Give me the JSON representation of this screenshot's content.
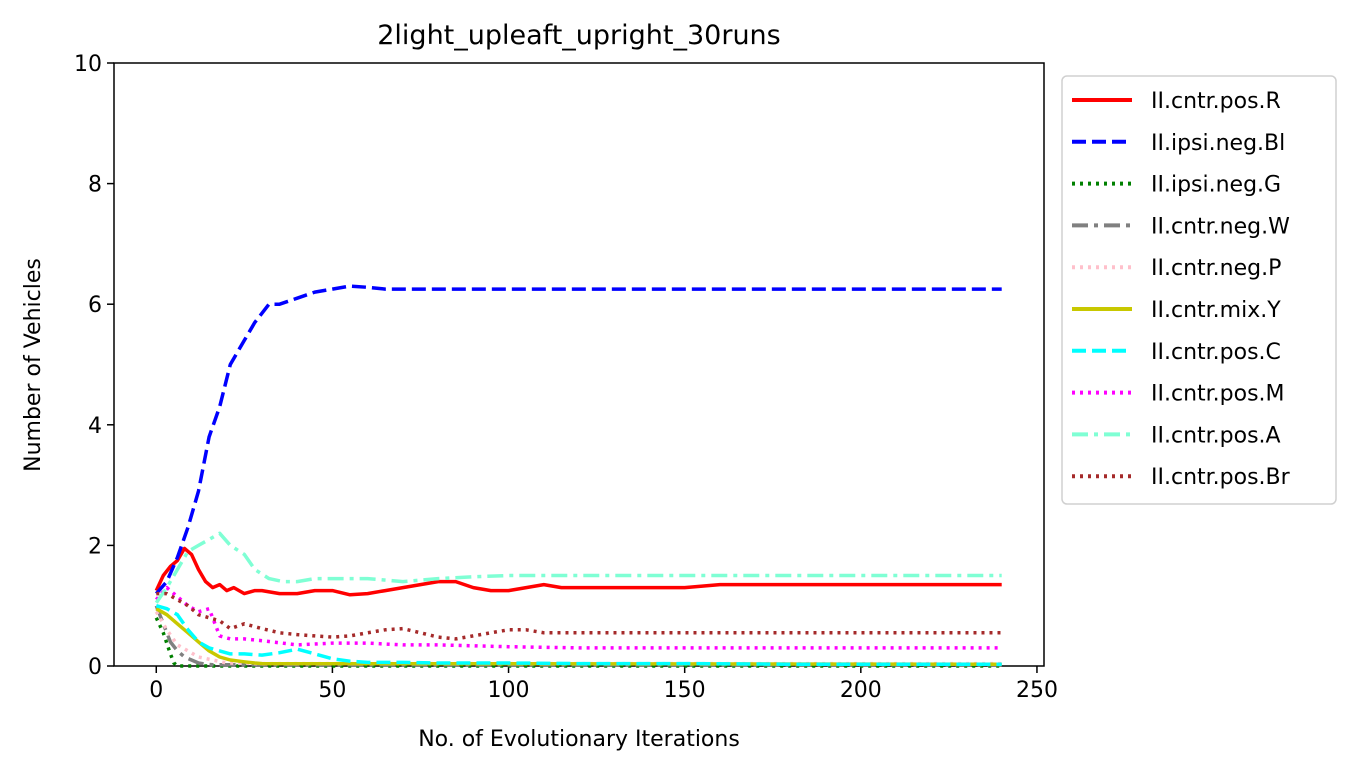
{
  "chart_data": {
    "type": "line",
    "title": "2light_upleaft_upright_30runs",
    "xlabel": "No. of Evolutionary Iterations",
    "ylabel": "Number of Vehicles",
    "xlim": [
      -12,
      252
    ],
    "ylim": [
      0,
      10
    ],
    "xticks": [
      0,
      50,
      100,
      150,
      200,
      250
    ],
    "yticks": [
      0,
      2,
      4,
      6,
      8,
      10
    ],
    "legend_position": "outside-right-top",
    "grid": false,
    "series": [
      {
        "name": "II.cntr.pos.R",
        "color": "#ff0000",
        "style": "solid",
        "x": [
          0,
          2,
          4,
          6,
          8,
          10,
          12,
          14,
          16,
          18,
          20,
          22,
          25,
          28,
          30,
          35,
          40,
          45,
          50,
          55,
          60,
          65,
          70,
          75,
          80,
          85,
          90,
          95,
          100,
          105,
          110,
          115,
          120,
          130,
          140,
          150,
          160,
          170,
          180,
          200,
          220,
          240
        ],
        "y": [
          1.25,
          1.5,
          1.65,
          1.75,
          1.95,
          1.85,
          1.6,
          1.4,
          1.3,
          1.35,
          1.25,
          1.3,
          1.2,
          1.25,
          1.25,
          1.2,
          1.2,
          1.25,
          1.25,
          1.18,
          1.2,
          1.25,
          1.3,
          1.35,
          1.4,
          1.4,
          1.3,
          1.25,
          1.25,
          1.3,
          1.35,
          1.3,
          1.3,
          1.3,
          1.3,
          1.3,
          1.35,
          1.35,
          1.35,
          1.35,
          1.35,
          1.35
        ]
      },
      {
        "name": "II.ipsi.neg.Bl",
        "color": "#0000ff",
        "style": "dashed",
        "x": [
          0,
          3,
          6,
          9,
          12,
          15,
          18,
          21,
          25,
          28,
          32,
          35,
          40,
          45,
          50,
          55,
          60,
          65,
          70,
          75,
          80,
          90,
          100,
          120,
          140,
          160,
          180,
          200,
          220,
          240
        ],
        "y": [
          1.2,
          1.4,
          1.8,
          2.3,
          2.9,
          3.8,
          4.3,
          5.0,
          5.4,
          5.7,
          6.0,
          6.0,
          6.1,
          6.2,
          6.25,
          6.3,
          6.28,
          6.25,
          6.25,
          6.25,
          6.25,
          6.25,
          6.25,
          6.25,
          6.25,
          6.25,
          6.25,
          6.25,
          6.25,
          6.25
        ]
      },
      {
        "name": "II.ipsi.neg.G",
        "color": "#008000",
        "style": "dotted",
        "x": [
          0,
          2,
          4,
          5,
          6,
          8,
          240
        ],
        "y": [
          0.8,
          0.55,
          0.2,
          0.05,
          0.0,
          0.0,
          0.0
        ]
      },
      {
        "name": "II.cntr.neg.W",
        "color": "#808080",
        "style": "dashdot",
        "x": [
          0,
          2,
          4,
          6,
          8,
          10,
          12,
          14,
          16,
          20,
          240
        ],
        "y": [
          1.0,
          0.7,
          0.4,
          0.25,
          0.15,
          0.1,
          0.05,
          0.03,
          0.02,
          0.02,
          0.02
        ]
      },
      {
        "name": "II.cntr.neg.P",
        "color": "#ffc0cb",
        "style": "dotted",
        "x": [
          0,
          3,
          6,
          9,
          12,
          16,
          20,
          30,
          50,
          240
        ],
        "y": [
          0.9,
          0.6,
          0.35,
          0.25,
          0.15,
          0.1,
          0.05,
          0.04,
          0.04,
          0.04
        ]
      },
      {
        "name": "II.cntr.mix.Y",
        "color": "#c8c800",
        "style": "solid",
        "x": [
          0,
          3,
          6,
          9,
          12,
          15,
          18,
          21,
          25,
          28,
          30,
          240
        ],
        "y": [
          0.95,
          0.85,
          0.7,
          0.55,
          0.4,
          0.25,
          0.15,
          0.1,
          0.07,
          0.05,
          0.04,
          0.03
        ]
      },
      {
        "name": "II.cntr.pos.C",
        "color": "#00ffff",
        "style": "dashed",
        "x": [
          0,
          3,
          6,
          9,
          12,
          15,
          18,
          21,
          25,
          30,
          35,
          40,
          45,
          50,
          55,
          60,
          70,
          80,
          100,
          120,
          150,
          180,
          210,
          240
        ],
        "y": [
          1.0,
          0.95,
          0.85,
          0.6,
          0.4,
          0.3,
          0.25,
          0.2,
          0.2,
          0.18,
          0.22,
          0.28,
          0.2,
          0.12,
          0.08,
          0.06,
          0.06,
          0.05,
          0.05,
          0.04,
          0.04,
          0.03,
          0.03,
          0.03
        ]
      },
      {
        "name": "II.cntr.pos.M",
        "color": "#ff00ff",
        "style": "dotted",
        "x": [
          0,
          3,
          6,
          9,
          12,
          15,
          18,
          21,
          25,
          30,
          40,
          50,
          60,
          70,
          80,
          100,
          120,
          150,
          200,
          240
        ],
        "y": [
          1.1,
          1.3,
          1.15,
          1.0,
          0.9,
          0.95,
          0.5,
          0.45,
          0.45,
          0.42,
          0.35,
          0.38,
          0.38,
          0.35,
          0.35,
          0.32,
          0.3,
          0.3,
          0.3,
          0.3
        ]
      },
      {
        "name": "II.cntr.pos.A",
        "color": "#7fffd4",
        "style": "dashdot",
        "x": [
          0,
          3,
          6,
          9,
          12,
          15,
          18,
          21,
          25,
          28,
          32,
          36,
          40,
          45,
          50,
          55,
          60,
          70,
          80,
          90,
          100,
          120,
          140,
          160,
          180,
          200,
          220,
          240
        ],
        "y": [
          1.05,
          1.3,
          1.6,
          1.9,
          2.0,
          2.1,
          2.2,
          2.0,
          1.85,
          1.6,
          1.45,
          1.4,
          1.4,
          1.45,
          1.45,
          1.45,
          1.45,
          1.4,
          1.45,
          1.48,
          1.5,
          1.5,
          1.5,
          1.5,
          1.5,
          1.5,
          1.5,
          1.5
        ]
      },
      {
        "name": "II.cntr.pos.Br",
        "color": "#a52a2a",
        "style": "dotted",
        "x": [
          0,
          3,
          6,
          9,
          12,
          15,
          18,
          21,
          25,
          30,
          35,
          40,
          45,
          50,
          55,
          60,
          65,
          70,
          75,
          80,
          85,
          90,
          95,
          100,
          105,
          110,
          120,
          130,
          140,
          160,
          180,
          200,
          220,
          240
        ],
        "y": [
          1.2,
          1.2,
          1.1,
          1.0,
          0.85,
          0.8,
          0.75,
          0.62,
          0.7,
          0.62,
          0.55,
          0.52,
          0.5,
          0.48,
          0.5,
          0.55,
          0.6,
          0.62,
          0.55,
          0.48,
          0.45,
          0.5,
          0.55,
          0.6,
          0.6,
          0.55,
          0.55,
          0.55,
          0.55,
          0.55,
          0.55,
          0.55,
          0.55,
          0.55
        ]
      }
    ]
  }
}
